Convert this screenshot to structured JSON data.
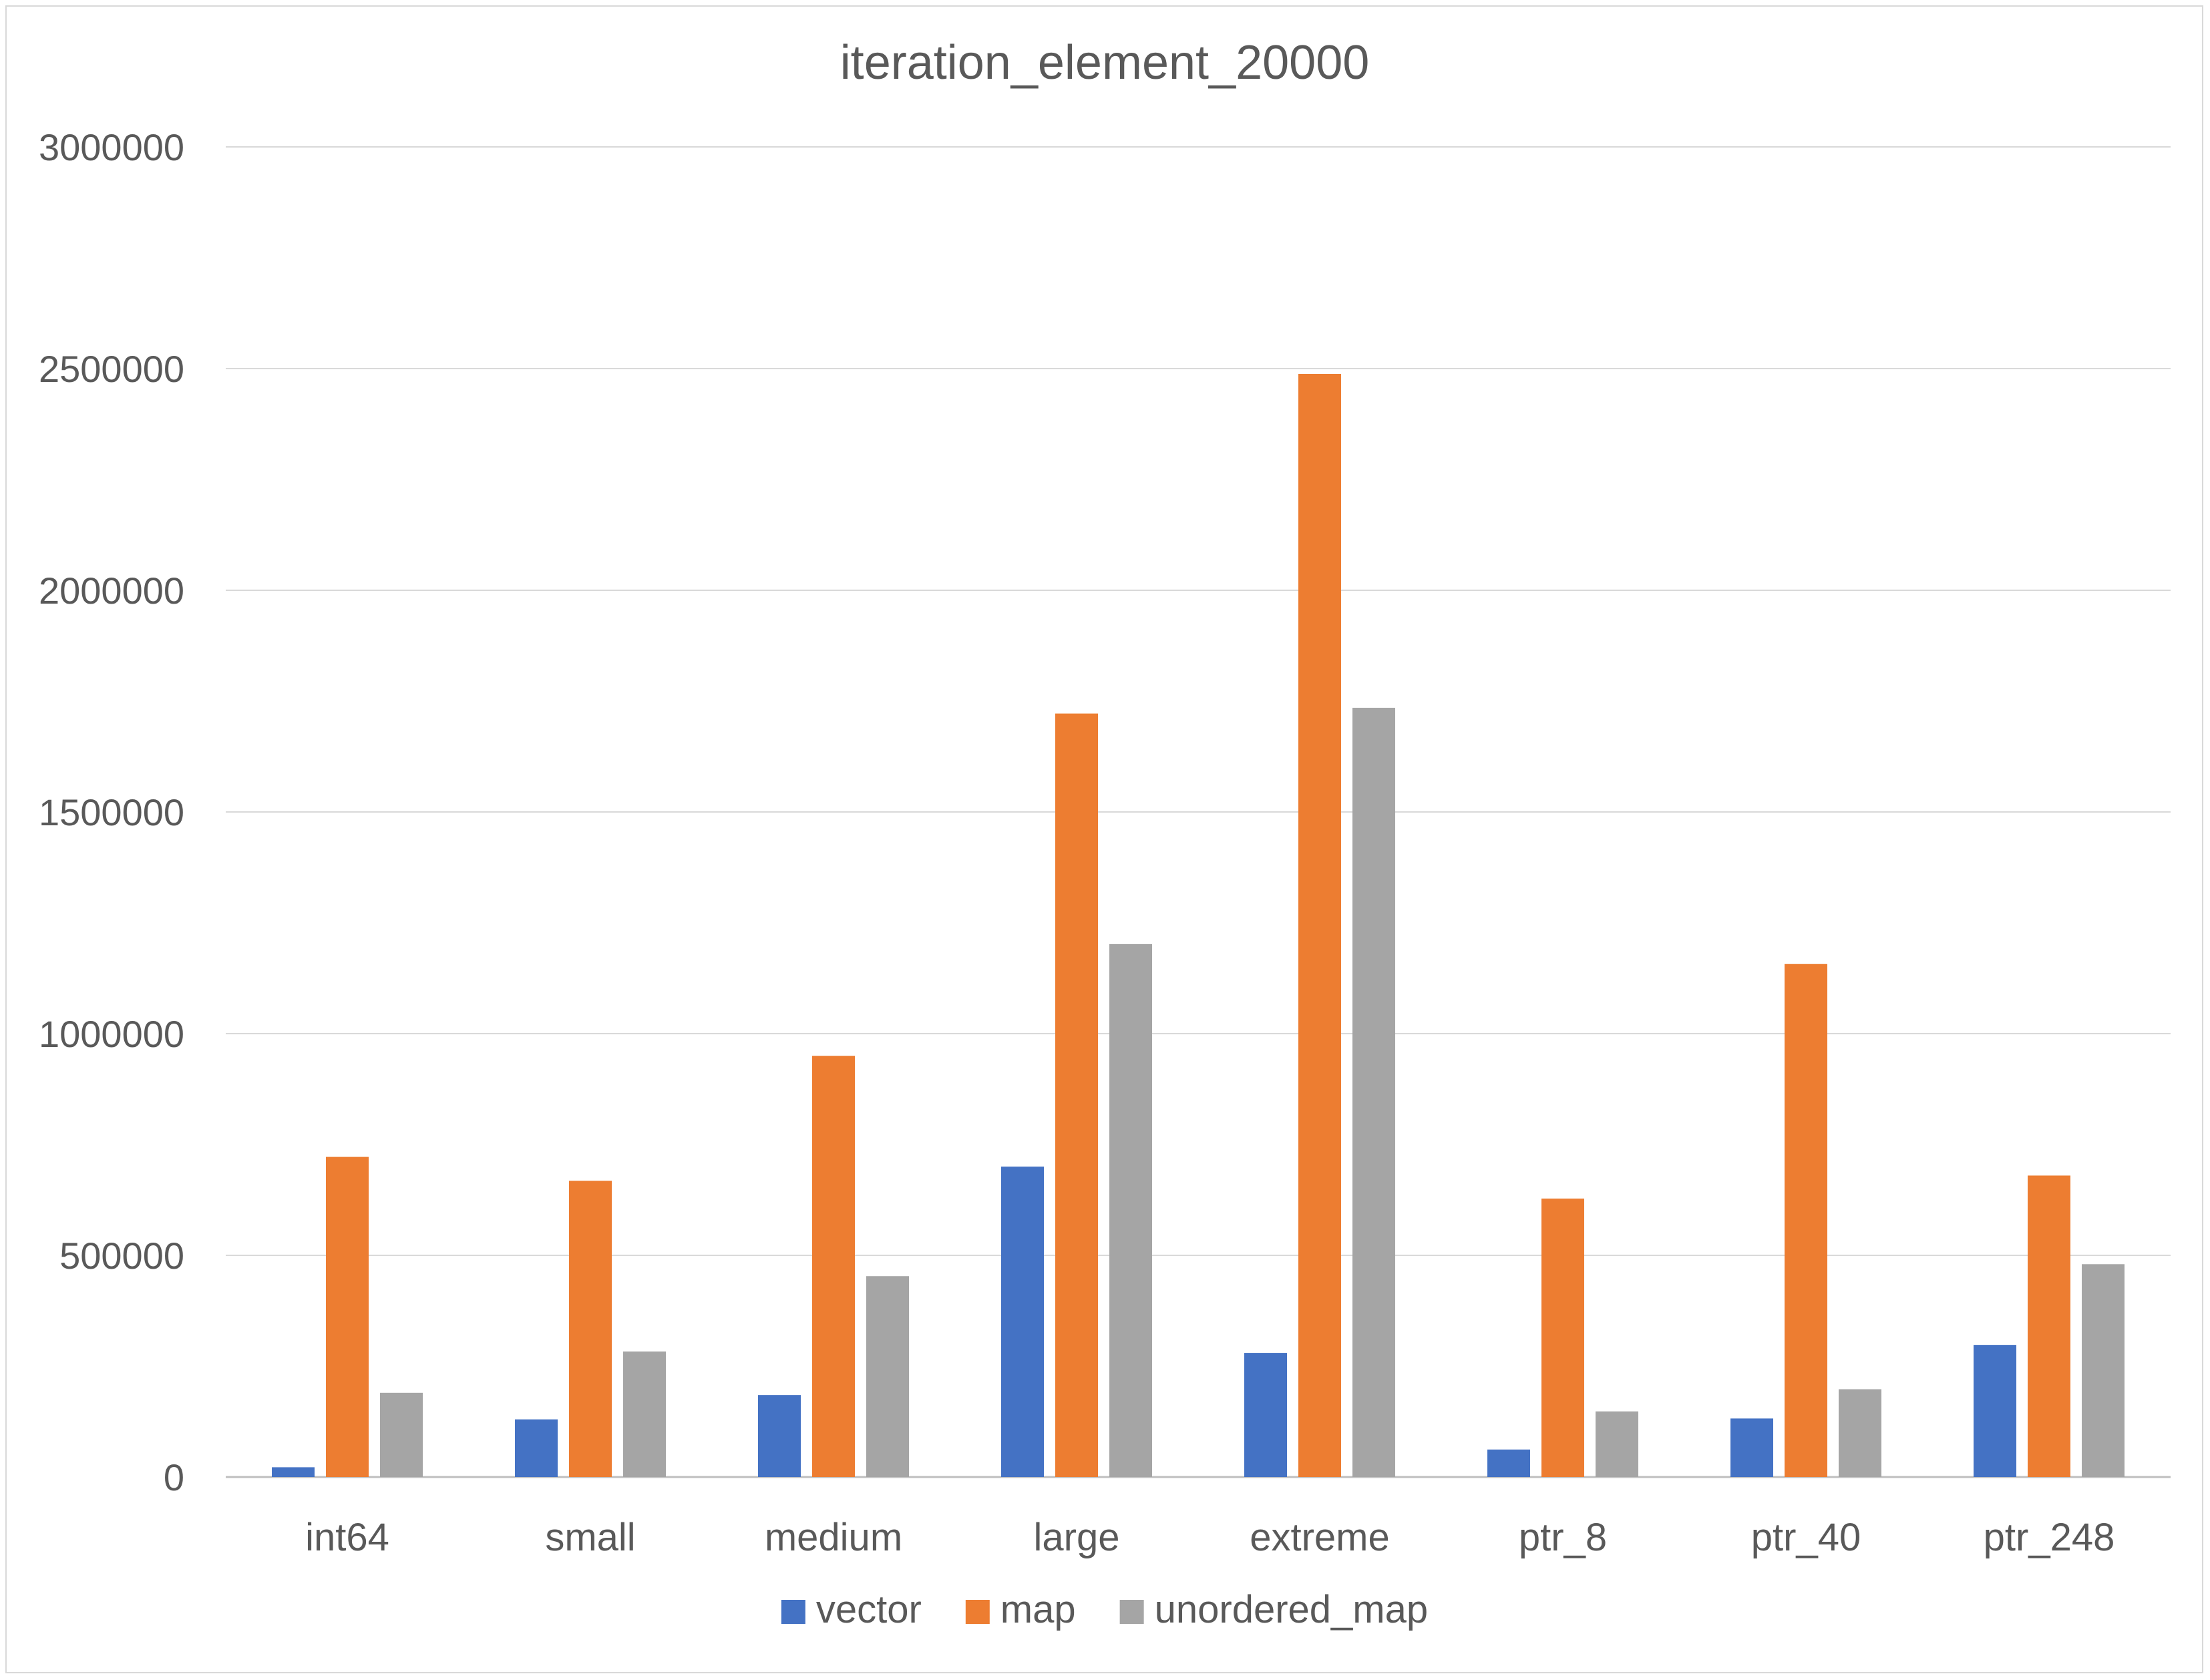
{
  "chart_data": {
    "type": "bar",
    "title": "iteration_element_20000",
    "xlabel": "",
    "ylabel": "",
    "ylim": [
      0,
      3000000
    ],
    "yticks": [
      0,
      500000,
      1000000,
      1500000,
      2000000,
      2500000,
      3000000
    ],
    "grid": true,
    "legend_position": "bottom",
    "categories": [
      "int64",
      "small",
      "medium",
      "large",
      "extreme",
      "ptr_8",
      "ptr_40",
      "ptr_248"
    ],
    "series": [
      {
        "name": "vector",
        "color": "#4472C4",
        "values": [
          22000,
          130000,
          185000,
          700000,
          280000,
          62000,
          132000,
          298000
        ]
      },
      {
        "name": "map",
        "color": "#ED7D31",
        "values": [
          722000,
          668000,
          950000,
          1722000,
          2488000,
          628000,
          1157000,
          680000
        ]
      },
      {
        "name": "unordered_map",
        "color": "#A5A5A5",
        "values": [
          190000,
          283000,
          453000,
          1202000,
          1735000,
          148000,
          198000,
          480000
        ]
      }
    ]
  }
}
